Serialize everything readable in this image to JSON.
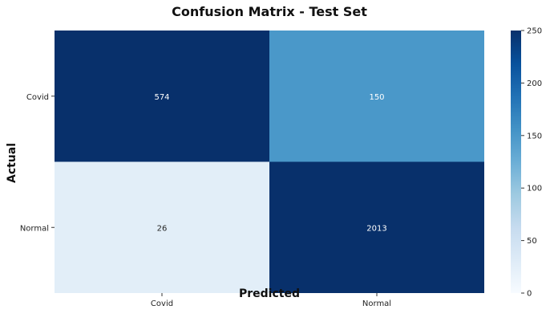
{
  "chart_data": {
    "type": "heatmap",
    "title": "Confusion Matrix - Test Set",
    "xlabel": "Predicted",
    "ylabel": "Actual",
    "x_categories": [
      "Covid",
      "Normal"
    ],
    "y_categories": [
      "Covid",
      "Normal"
    ],
    "values": [
      [
        574,
        150
      ],
      [
        26,
        2013
      ]
    ],
    "color_range": [
      0,
      250
    ],
    "colormap": "Blues",
    "colorbar_ticks": [
      0,
      50,
      100,
      150,
      200,
      250
    ],
    "grid": false
  }
}
